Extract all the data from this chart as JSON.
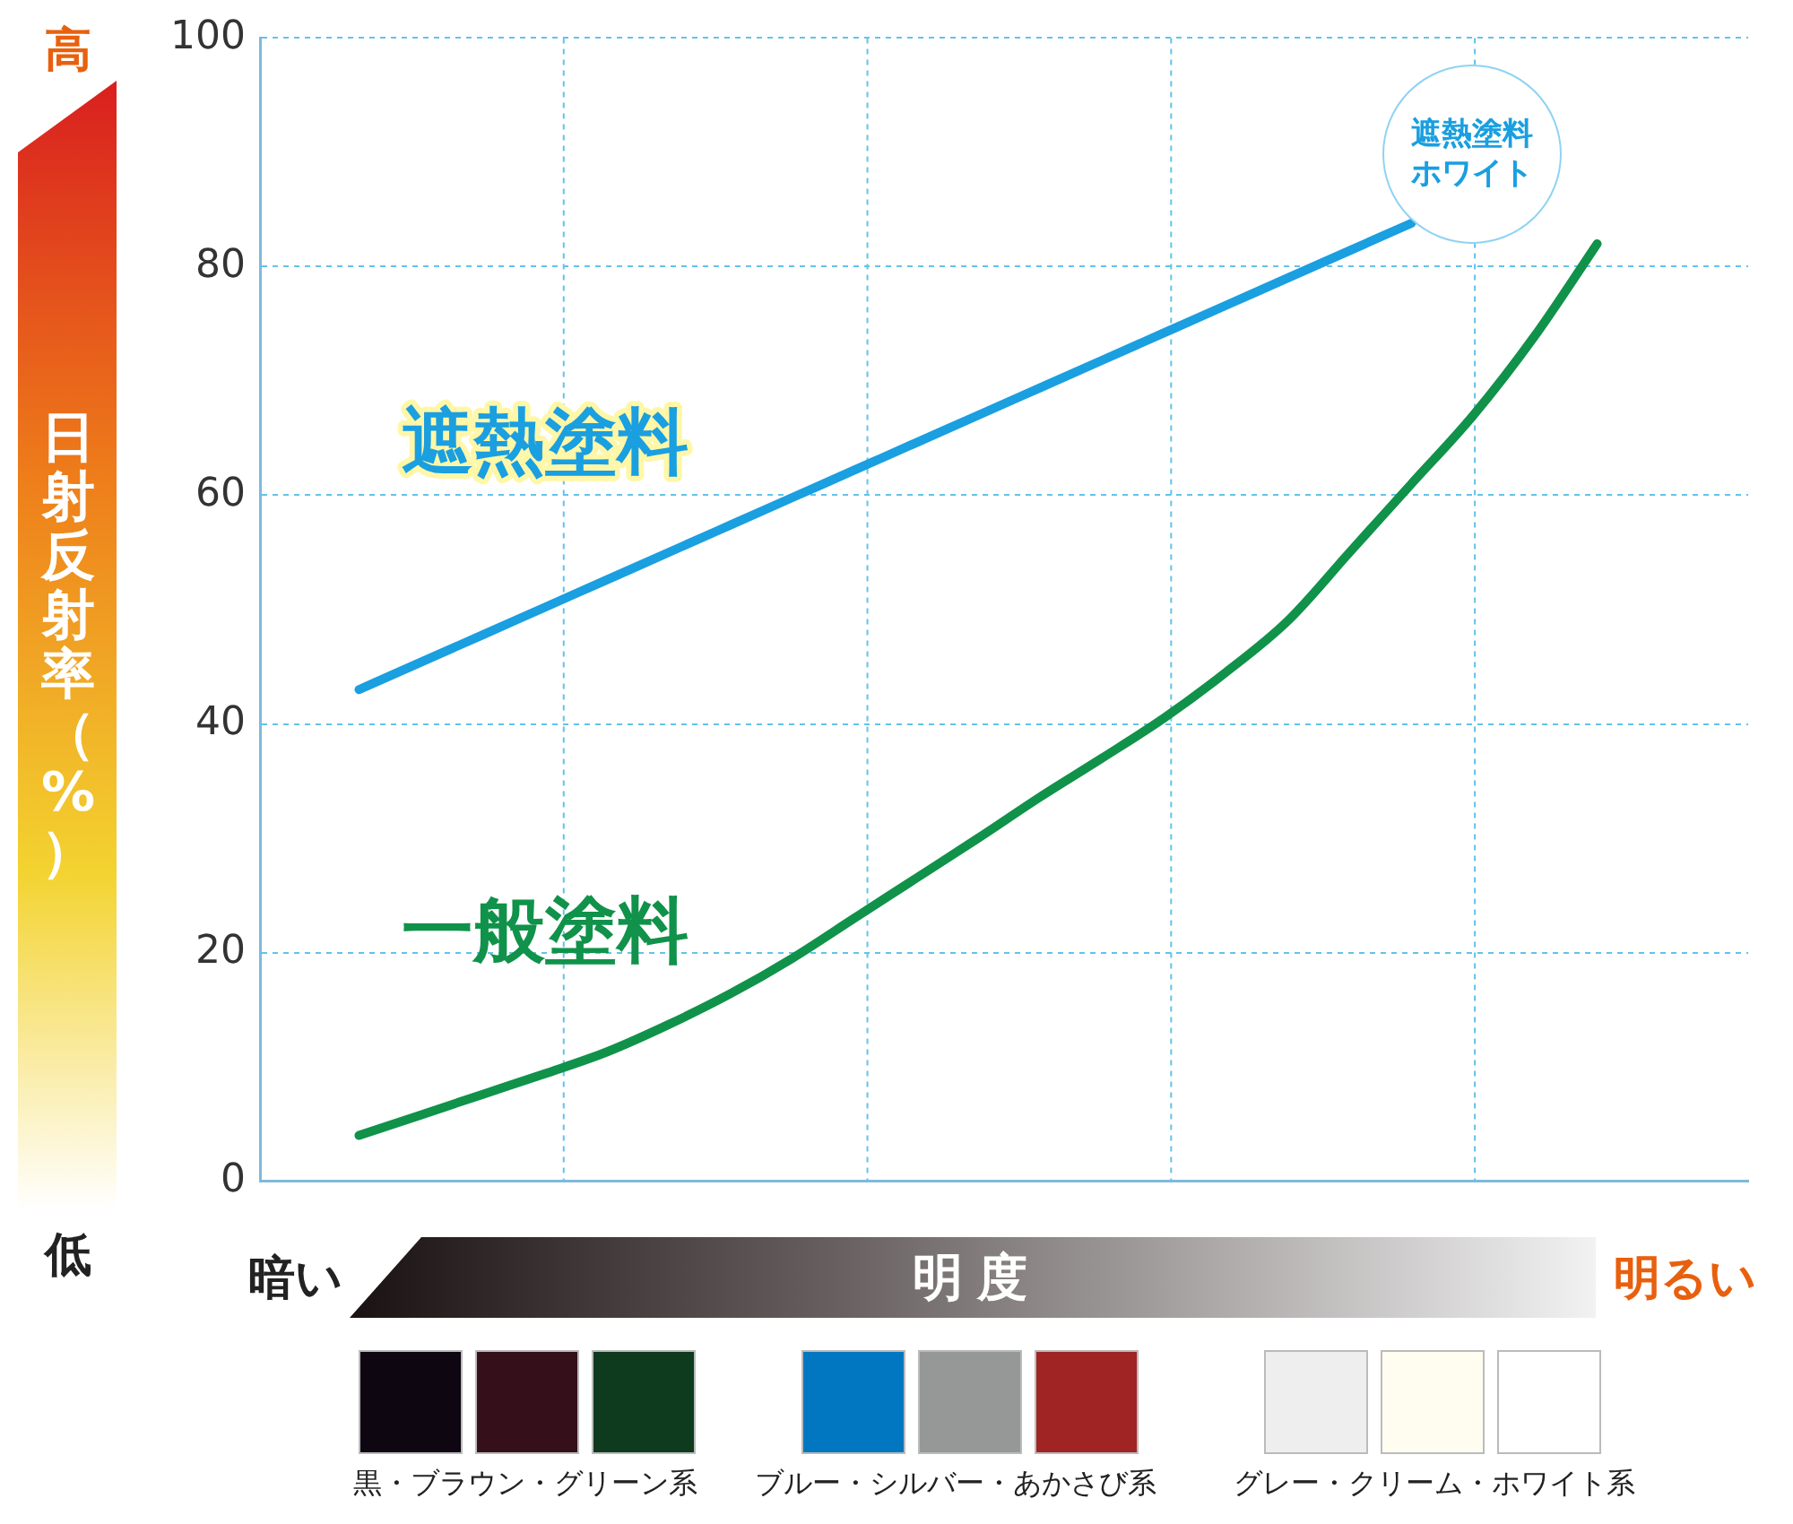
{
  "chart_data": {
    "type": "line",
    "ylabel": "日射反射率（%）",
    "xlabel": "明度",
    "categories": [
      null,
      null,
      null,
      null,
      null,
      null,
      null,
      null,
      null,
      null,
      null,
      null,
      null,
      null,
      null,
      null,
      null,
      null,
      null,
      null,
      null
    ],
    "series": [
      {
        "name": "遮熱塗料",
        "color": "#1a9fe0",
        "values": [
          43,
          45.4,
          47.8,
          50.2,
          52.6,
          55,
          57.4,
          59.8,
          62.2,
          64.6,
          67,
          69.4,
          71.8,
          74.2,
          76.6,
          79,
          81.4,
          83.8,
          null,
          null,
          null
        ]
      },
      {
        "name": "一般塗料",
        "color": "#10924a",
        "values": [
          4,
          5.8,
          7.6,
          9.4,
          11.3,
          13.7,
          16.4,
          19.5,
          23,
          26.5,
          30,
          33.6,
          37,
          40.5,
          44.5,
          49,
          55,
          61,
          67,
          74,
          82
        ]
      }
    ],
    "ylim": [
      0,
      100
    ],
    "yticks": [
      0,
      20,
      40,
      60,
      80,
      100
    ],
    "grid": true,
    "legend": false,
    "marker": "none",
    "line_style": "solid",
    "annotations": [
      "高",
      "低",
      "暗い",
      "明るい",
      "遮熱塗料ホワイト",
      "黒・ブラウン・グリーン系",
      "ブルー・シルバー・あかさび系",
      "グレー・クリーム・ホワイト系"
    ]
  }
}
